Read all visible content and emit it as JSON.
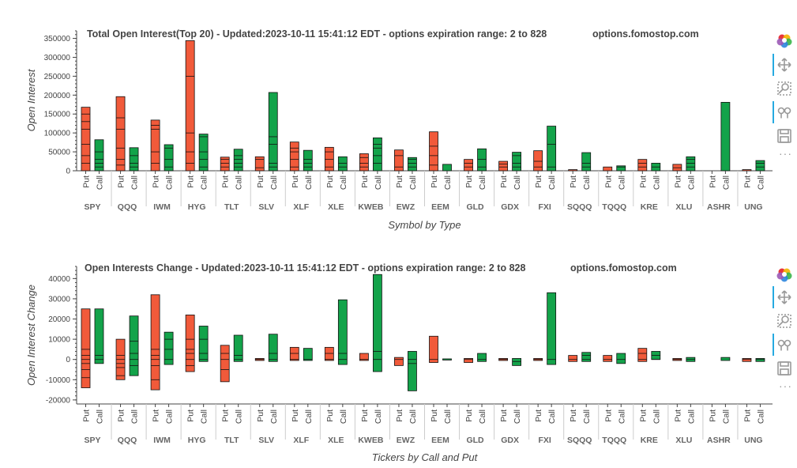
{
  "colors": {
    "put": "#f15a3a",
    "call": "#13a34a",
    "stroke": "#111111",
    "axis": "#444444"
  },
  "sublabels": [
    "Put",
    "Call"
  ],
  "toolbar": {
    "icons": [
      "bokeh-logo-icon",
      "pan-icon",
      "box-zoom-icon",
      "wheel-zoom-icon",
      "save-icon"
    ],
    "more": "···"
  },
  "chart_data": [
    {
      "type": "bar",
      "title": "Total Open Interest(Top 20) - Updated:2023-10-11 15:41:12 EDT - options expiration range: 2 to 828",
      "site": "options.fomostop.com",
      "xlabel": "Symbol by Type",
      "ylabel": "Open Interest",
      "ylim": [
        0,
        370000
      ],
      "yticks": [
        0,
        50000,
        100000,
        150000,
        200000,
        250000,
        300000,
        350000
      ],
      "categories": [
        "SPY",
        "QQQ",
        "IWM",
        "HYG",
        "TLT",
        "SLV",
        "XLF",
        "XLE",
        "KWEB",
        "EWZ",
        "EEM",
        "GLD",
        "GDX",
        "FXI",
        "SQQQ",
        "TQQQ",
        "KRE",
        "XLU",
        "ASHR",
        "UNG"
      ],
      "series": [
        {
          "name": "Put",
          "values": [
            168000,
            196000,
            134000,
            344000,
            36000,
            37000,
            76000,
            62000,
            45000,
            55000,
            103000,
            30000,
            25000,
            53000,
            3000,
            10000,
            30000,
            17000,
            0,
            3000
          ],
          "segments": [
            [
              20000,
              40000,
              70000,
              110000,
              130000,
              150000
            ],
            [
              15000,
              30000,
              60000,
              110000,
              140000
            ],
            [
              20000,
              50000,
              110000,
              120000
            ],
            [
              20000,
              50000,
              100000,
              250000
            ],
            [
              10000,
              20000,
              30000
            ],
            [
              8000,
              30000
            ],
            [
              10000,
              30000,
              50000,
              60000
            ],
            [
              10000,
              30000,
              50000
            ],
            [
              10000,
              20000,
              35000
            ],
            [
              10000,
              40000
            ],
            [
              15000,
              40000,
              65000
            ],
            [
              10000,
              20000
            ],
            [
              10000,
              18000
            ],
            [
              10000,
              25000
            ],
            [],
            [],
            [
              10000,
              20000
            ],
            [
              8000
            ],
            [],
            []
          ]
        },
        {
          "name": "Call",
          "values": [
            82000,
            61000,
            69000,
            97000,
            57000,
            207000,
            54000,
            37000,
            87000,
            35000,
            17000,
            58000,
            49000,
            118000,
            48000,
            13000,
            20000,
            37000,
            181000,
            27000
          ],
          "segments": [
            [
              10000,
              20000,
              30000,
              50000
            ],
            [
              10000,
              20000,
              40000
            ],
            [
              10000,
              30000,
              60000
            ],
            [
              10000,
              30000,
              50000,
              90000
            ],
            [
              10000,
              20000,
              30000,
              40000
            ],
            [
              10000,
              20000,
              70000,
              90000
            ],
            [
              10000,
              20000,
              30000
            ],
            [
              10000,
              20000
            ],
            [
              20000,
              40000,
              60000,
              70000
            ],
            [
              10000,
              20000,
              30000
            ],
            [],
            [
              10000,
              30000
            ],
            [
              10000,
              20000,
              40000
            ],
            [
              10000,
              70000
            ],
            [
              10000,
              20000
            ],
            [
              10000
            ],
            [
              10000
            ],
            [
              10000,
              20000,
              30000
            ],
            [],
            [
              10000,
              20000
            ]
          ]
        }
      ]
    },
    {
      "type": "bar",
      "title": "Open Interests Change - Updated:2023-10-11 15:41:12 EDT - options expiration range: 2 to 828",
      "site": "options.fomostop.com",
      "xlabel": "Tickers by Call and Put",
      "ylabel": "Open Interest Change",
      "ylim": [
        -22000,
        46000
      ],
      "yticks": [
        -20000,
        -10000,
        0,
        10000,
        20000,
        30000,
        40000
      ],
      "categories": [
        "SPY",
        "QQQ",
        "IWM",
        "HYG",
        "TLT",
        "SLV",
        "XLF",
        "XLE",
        "KWEB",
        "EWZ",
        "EEM",
        "GLD",
        "GDX",
        "FXI",
        "SQQQ",
        "TQQQ",
        "KRE",
        "XLU",
        "ASHR",
        "UNG"
      ],
      "series": [
        {
          "name": "Put",
          "ranges": [
            [
              -14000,
              25000
            ],
            [
              -10000,
              10000
            ],
            [
              -15000,
              32000
            ],
            [
              -6000,
              22000
            ],
            [
              -11000,
              7000
            ],
            [
              -500,
              500
            ],
            [
              -500,
              6000
            ],
            [
              -500,
              6000
            ],
            [
              -500,
              3000
            ],
            [
              -3000,
              1000
            ],
            [
              -1500,
              11500
            ],
            [
              -1500,
              500
            ],
            [
              -500,
              500
            ],
            [
              -500,
              500
            ],
            [
              -1000,
              2000
            ],
            [
              -1000,
              2000
            ],
            [
              -1000,
              5500
            ],
            [
              -500,
              500
            ],
            [
              0,
              0
            ],
            [
              -1000,
              500
            ]
          ],
          "segments": [
            [
              -9000,
              -5000,
              -2000,
              0,
              2000,
              5000
            ],
            [
              -8000,
              -4000,
              -2000,
              0,
              2000
            ],
            [
              -10000,
              -3000,
              0,
              2000,
              5000
            ],
            [
              -3000,
              0,
              3000,
              5000,
              10000
            ],
            [
              -5000,
              0,
              3000
            ],
            [
              0
            ],
            [
              0,
              3000
            ],
            [
              0,
              3000
            ],
            [
              0
            ],
            [
              0
            ],
            [
              0
            ],
            [
              0
            ],
            [
              0
            ],
            [
              0
            ],
            [
              0
            ],
            [
              0
            ],
            [
              0,
              3000
            ],
            [
              0
            ],
            [],
            [
              0
            ]
          ]
        },
        {
          "name": "Call",
          "ranges": [
            [
              -2000,
              25000
            ],
            [
              -8000,
              21500
            ],
            [
              -2500,
              13500
            ],
            [
              -1000,
              16500
            ],
            [
              -1000,
              12000
            ],
            [
              -1000,
              12500
            ],
            [
              -500,
              5500
            ],
            [
              -2500,
              29500
            ],
            [
              -6000,
              42000
            ],
            [
              -15500,
              4000
            ],
            [
              -300,
              300
            ],
            [
              -1000,
              3000
            ],
            [
              -3000,
              500
            ],
            [
              -2500,
              33000
            ],
            [
              -1000,
              3500
            ],
            [
              -2000,
              3000
            ],
            [
              0,
              4000
            ],
            [
              -1000,
              1000
            ],
            [
              -500,
              1000
            ],
            [
              -1000,
              500
            ]
          ],
          "segments": [
            [
              0,
              2000
            ],
            [
              -3000,
              0,
              3000,
              9000
            ],
            [
              0,
              5000,
              10000
            ],
            [
              0,
              3000,
              10000
            ],
            [
              0,
              2000
            ],
            [
              0,
              3000
            ],
            [
              0
            ],
            [
              0,
              3000
            ],
            [
              0,
              4000
            ],
            [
              -2000,
              0
            ],
            [],
            [
              0
            ],
            [
              -1000
            ],
            [
              0
            ],
            [
              0,
              2000
            ],
            [
              0
            ],
            [
              0,
              2000
            ],
            [
              0
            ],
            [],
            [
              0
            ]
          ]
        }
      ]
    }
  ]
}
